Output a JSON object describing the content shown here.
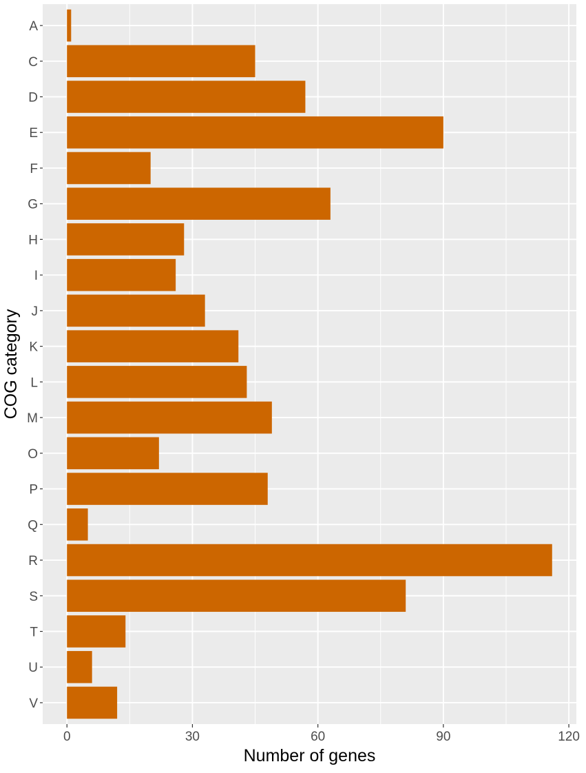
{
  "chart_data": {
    "type": "bar",
    "orientation": "horizontal",
    "title": "",
    "xlabel": "Number of genes",
    "ylabel": "COG category",
    "categories": [
      "A",
      "C",
      "D",
      "E",
      "F",
      "G",
      "H",
      "I",
      "J",
      "K",
      "L",
      "M",
      "O",
      "P",
      "Q",
      "R",
      "S",
      "T",
      "U",
      "V"
    ],
    "values": [
      1,
      45,
      57,
      90,
      20,
      63,
      28,
      26,
      33,
      41,
      43,
      49,
      22,
      48,
      5,
      116,
      81,
      14,
      6,
      12
    ],
    "xlim": [
      -5.8,
      121.8
    ],
    "xticks": [
      0,
      30,
      60,
      90,
      120
    ],
    "xtick_labels": [
      "0",
      "30",
      "60",
      "90",
      "120"
    ],
    "grid": true,
    "legend": "none",
    "colors": {
      "bar": "#CC6600",
      "panel_background": "#EBEBEB",
      "grid": "#FFFFFF",
      "tick_text": "#4D4D4D",
      "axis_title_text": "#000000"
    }
  }
}
